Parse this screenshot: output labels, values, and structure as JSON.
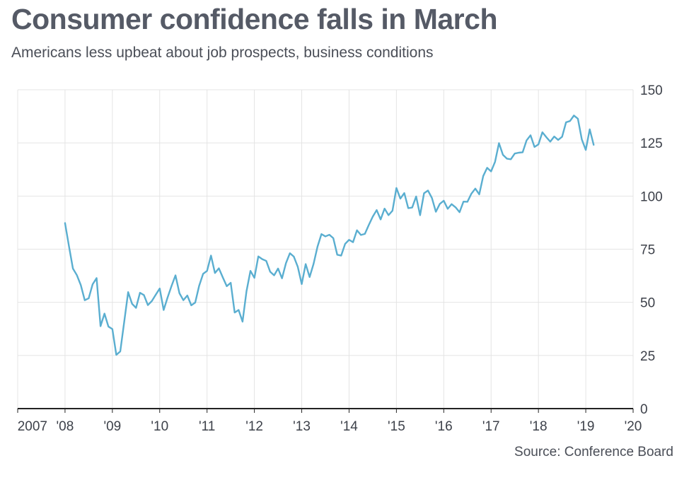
{
  "header": {
    "title": "Consumer confidence falls in March",
    "subtitle": "Americans less upbeat about job prospects, business conditions"
  },
  "footer": {
    "source": "Source: Conference Board"
  },
  "colors": {
    "line": "#5aaed0",
    "grid": "#e4e4e4",
    "axis": "#222222",
    "title": "#555a66"
  },
  "chart_data": {
    "type": "line",
    "title": "Consumer confidence falls in March",
    "subtitle": "Americans less upbeat about job prospects, business conditions",
    "xlabel": "",
    "ylabel": "",
    "xlim": [
      2007,
      2020
    ],
    "ylim": [
      0,
      150
    ],
    "grid": true,
    "y_axis_position": "right",
    "x_ticks": [
      {
        "value": 2007,
        "label": "2007"
      },
      {
        "value": 2008,
        "label": "'08"
      },
      {
        "value": 2009,
        "label": "'09"
      },
      {
        "value": 2010,
        "label": "'10"
      },
      {
        "value": 2011,
        "label": "'11"
      },
      {
        "value": 2012,
        "label": "'12"
      },
      {
        "value": 2013,
        "label": "'13"
      },
      {
        "value": 2014,
        "label": "'14"
      },
      {
        "value": 2015,
        "label": "'15"
      },
      {
        "value": 2016,
        "label": "'16"
      },
      {
        "value": 2017,
        "label": "'17"
      },
      {
        "value": 2018,
        "label": "'18"
      },
      {
        "value": 2019,
        "label": "'19"
      },
      {
        "value": 2020,
        "label": "'20"
      }
    ],
    "y_ticks": [
      {
        "value": 0,
        "label": "0"
      },
      {
        "value": 25,
        "label": "25"
      },
      {
        "value": 50,
        "label": "50"
      },
      {
        "value": 75,
        "label": "75"
      },
      {
        "value": 100,
        "label": "100"
      },
      {
        "value": 125,
        "label": "125"
      },
      {
        "value": 150,
        "label": "150"
      }
    ],
    "series": [
      {
        "name": "",
        "points": [
          [
            "2008-01",
            87.3
          ],
          [
            "2008-02",
            76.4
          ],
          [
            "2008-03",
            65.9
          ],
          [
            "2008-04",
            62.8
          ],
          [
            "2008-05",
            58.1
          ],
          [
            "2008-06",
            51.0
          ],
          [
            "2008-07",
            51.9
          ],
          [
            "2008-08",
            58.5
          ],
          [
            "2008-09",
            61.4
          ],
          [
            "2008-10",
            38.8
          ],
          [
            "2008-11",
            44.7
          ],
          [
            "2008-12",
            38.6
          ],
          [
            "2009-01",
            37.4
          ],
          [
            "2009-02",
            25.3
          ],
          [
            "2009-03",
            26.9
          ],
          [
            "2009-04",
            40.8
          ],
          [
            "2009-05",
            54.8
          ],
          [
            "2009-06",
            49.3
          ],
          [
            "2009-07",
            47.4
          ],
          [
            "2009-08",
            54.5
          ],
          [
            "2009-09",
            53.4
          ],
          [
            "2009-10",
            48.7
          ],
          [
            "2009-11",
            50.6
          ],
          [
            "2009-12",
            53.6
          ],
          [
            "2010-01",
            56.5
          ],
          [
            "2010-02",
            46.4
          ],
          [
            "2010-03",
            52.3
          ],
          [
            "2010-04",
            57.7
          ],
          [
            "2010-05",
            62.7
          ],
          [
            "2010-06",
            54.3
          ],
          [
            "2010-07",
            51.0
          ],
          [
            "2010-08",
            53.2
          ],
          [
            "2010-09",
            48.6
          ],
          [
            "2010-10",
            49.9
          ],
          [
            "2010-11",
            57.8
          ],
          [
            "2010-12",
            63.4
          ],
          [
            "2011-01",
            64.8
          ],
          [
            "2011-02",
            72.0
          ],
          [
            "2011-03",
            63.8
          ],
          [
            "2011-04",
            66.0
          ],
          [
            "2011-05",
            61.7
          ],
          [
            "2011-06",
            57.6
          ],
          [
            "2011-07",
            59.2
          ],
          [
            "2011-08",
            45.2
          ],
          [
            "2011-09",
            46.4
          ],
          [
            "2011-10",
            40.9
          ],
          [
            "2011-11",
            55.2
          ],
          [
            "2011-12",
            64.8
          ],
          [
            "2012-01",
            61.5
          ],
          [
            "2012-02",
            71.6
          ],
          [
            "2012-03",
            70.3
          ],
          [
            "2012-04",
            69.5
          ],
          [
            "2012-05",
            64.4
          ],
          [
            "2012-06",
            62.7
          ],
          [
            "2012-07",
            65.9
          ],
          [
            "2012-08",
            61.3
          ],
          [
            "2012-09",
            68.4
          ],
          [
            "2012-10",
            73.1
          ],
          [
            "2012-11",
            71.5
          ],
          [
            "2012-12",
            66.7
          ],
          [
            "2013-01",
            58.6
          ],
          [
            "2013-02",
            68.0
          ],
          [
            "2013-03",
            61.9
          ],
          [
            "2013-04",
            68.1
          ],
          [
            "2013-05",
            76.2
          ],
          [
            "2013-06",
            82.1
          ],
          [
            "2013-07",
            81.0
          ],
          [
            "2013-08",
            81.8
          ],
          [
            "2013-09",
            80.2
          ],
          [
            "2013-10",
            72.4
          ],
          [
            "2013-11",
            72.0
          ],
          [
            "2013-12",
            77.5
          ],
          [
            "2014-01",
            79.4
          ],
          [
            "2014-02",
            78.3
          ],
          [
            "2014-03",
            83.9
          ],
          [
            "2014-04",
            81.7
          ],
          [
            "2014-05",
            82.2
          ],
          [
            "2014-06",
            86.4
          ],
          [
            "2014-07",
            90.3
          ],
          [
            "2014-08",
            93.4
          ],
          [
            "2014-09",
            89.0
          ],
          [
            "2014-10",
            94.1
          ],
          [
            "2014-11",
            91.0
          ],
          [
            "2014-12",
            93.1
          ],
          [
            "2015-01",
            103.8
          ],
          [
            "2015-02",
            98.8
          ],
          [
            "2015-03",
            101.4
          ],
          [
            "2015-04",
            94.3
          ],
          [
            "2015-05",
            94.6
          ],
          [
            "2015-06",
            99.8
          ],
          [
            "2015-07",
            91.0
          ],
          [
            "2015-08",
            101.3
          ],
          [
            "2015-09",
            102.6
          ],
          [
            "2015-10",
            99.1
          ],
          [
            "2015-11",
            92.6
          ],
          [
            "2015-12",
            96.3
          ],
          [
            "2016-01",
            97.8
          ],
          [
            "2016-02",
            94.0
          ],
          [
            "2016-03",
            96.2
          ],
          [
            "2016-04",
            94.7
          ],
          [
            "2016-05",
            92.4
          ],
          [
            "2016-06",
            97.4
          ],
          [
            "2016-07",
            97.3
          ],
          [
            "2016-08",
            101.1
          ],
          [
            "2016-09",
            103.5
          ],
          [
            "2016-10",
            100.8
          ],
          [
            "2016-11",
            109.4
          ],
          [
            "2016-12",
            113.3
          ],
          [
            "2017-01",
            111.6
          ],
          [
            "2017-02",
            116.1
          ],
          [
            "2017-03",
            124.9
          ],
          [
            "2017-04",
            119.4
          ],
          [
            "2017-05",
            117.6
          ],
          [
            "2017-06",
            117.3
          ],
          [
            "2017-07",
            120.0
          ],
          [
            "2017-08",
            120.4
          ],
          [
            "2017-09",
            120.6
          ],
          [
            "2017-10",
            126.2
          ],
          [
            "2017-11",
            128.6
          ],
          [
            "2017-12",
            123.1
          ],
          [
            "2018-01",
            124.3
          ],
          [
            "2018-02",
            130.0
          ],
          [
            "2018-03",
            127.7
          ],
          [
            "2018-04",
            125.6
          ],
          [
            "2018-05",
            128.0
          ],
          [
            "2018-06",
            126.4
          ],
          [
            "2018-07",
            127.9
          ],
          [
            "2018-08",
            134.7
          ],
          [
            "2018-09",
            135.3
          ],
          [
            "2018-10",
            137.9
          ],
          [
            "2018-11",
            136.4
          ],
          [
            "2018-12",
            126.6
          ],
          [
            "2019-01",
            121.7
          ],
          [
            "2019-02",
            131.4
          ],
          [
            "2019-03",
            124.1
          ]
        ]
      }
    ]
  }
}
